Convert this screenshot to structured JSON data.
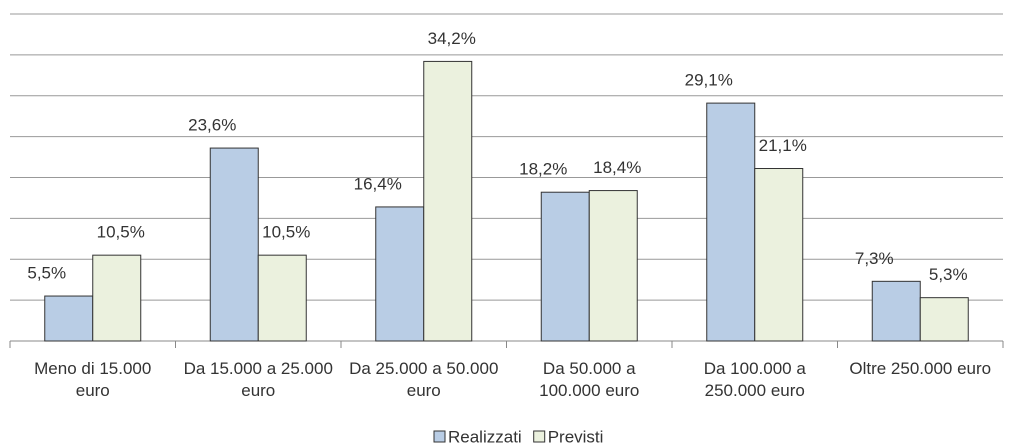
{
  "chart_data": {
    "type": "bar",
    "categories": [
      "Meno di 15.000 euro",
      "Da 15.000 a 25.000 euro",
      "Da 25.000 a 50.000 euro",
      "Da 50.000 a 100.000 euro",
      "Da 100.000 a 250.000 euro",
      "Oltre 250.000 euro"
    ],
    "series": [
      {
        "name": "Realizzati",
        "color": "#b9cde5",
        "values": [
          5.5,
          23.6,
          16.4,
          18.2,
          29.1,
          7.3
        ],
        "value_labels": [
          "5,5%",
          "23,6%",
          "16,4%",
          "18,2%",
          "29,1%",
          "7,3%"
        ]
      },
      {
        "name": "Previsti",
        "color": "#ebf1de",
        "values": [
          10.5,
          10.5,
          34.2,
          18.4,
          21.1,
          5.3
        ],
        "value_labels": [
          "10,5%",
          "10,5%",
          "34,2%",
          "18,4%",
          "21,1%",
          "5,3%"
        ]
      }
    ],
    "ylim": [
      0,
      40
    ],
    "yticks": [
      0,
      5,
      10,
      15,
      20,
      25,
      30,
      35,
      40
    ],
    "grid": true,
    "legend": "bottom"
  }
}
